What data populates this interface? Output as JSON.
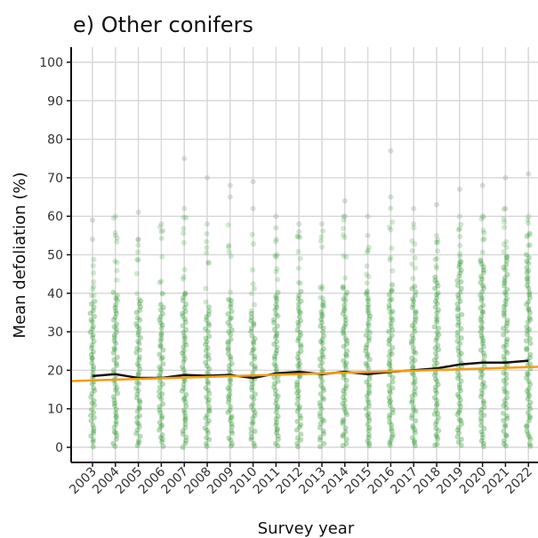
{
  "chart_data": {
    "type": "scatter",
    "title": "e) Other conifers",
    "xlabel": "Survey year",
    "ylabel": "Mean defoliation (%)",
    "x": [
      2003,
      2004,
      2005,
      2006,
      2007,
      2008,
      2009,
      2010,
      2011,
      2012,
      2013,
      2014,
      2015,
      2016,
      2017,
      2018,
      2019,
      2020,
      2021,
      2022
    ],
    "x_tick_labels": [
      "2003",
      "2004",
      "2005",
      "2006",
      "2007",
      "2008",
      "2009",
      "2010",
      "2011",
      "2012",
      "2013",
      "2014",
      "2015",
      "2016",
      "2017",
      "2018",
      "2019",
      "2020",
      "2021",
      "2022"
    ],
    "ylim": [
      0,
      100
    ],
    "y_ticks": [
      0,
      10,
      20,
      30,
      40,
      50,
      60,
      70,
      80,
      90,
      100
    ],
    "y_tick_labels": [
      "0",
      "10",
      "20",
      "30",
      "40",
      "50",
      "60",
      "70",
      "80",
      "90",
      "100"
    ],
    "grid": true,
    "series": [
      {
        "kind": "points",
        "color": "#2e9a2e",
        "dense_range": [
          [
            0,
            38
          ],
          [
            0,
            40
          ],
          [
            0,
            38
          ],
          [
            0,
            37
          ],
          [
            0,
            40
          ],
          [
            0,
            36
          ],
          [
            0,
            38
          ],
          [
            0,
            35
          ],
          [
            0,
            40
          ],
          [
            0,
            40
          ],
          [
            0,
            38
          ],
          [
            0,
            42
          ],
          [
            0,
            40
          ],
          [
            0,
            42
          ],
          [
            0,
            42
          ],
          [
            0,
            44
          ],
          [
            0,
            48
          ],
          [
            0,
            48
          ],
          [
            0,
            50
          ],
          [
            0,
            50
          ]
        ],
        "outliers": [
          [
            54,
            59
          ],
          [
            60,
            55
          ],
          [
            54,
            61
          ],
          [
            58,
            56
          ],
          [
            62,
            75
          ],
          [
            58,
            70
          ],
          [
            65,
            68
          ],
          [
            62,
            69
          ],
          [
            57,
            60
          ],
          [
            56,
            58
          ],
          [
            58,
            52
          ],
          [
            60,
            64
          ],
          [
            55,
            60
          ],
          [
            65,
            77
          ],
          [
            58,
            62
          ],
          [
            55,
            63
          ],
          [
            60,
            67
          ],
          [
            60,
            68
          ],
          [
            62,
            70
          ],
          [
            60,
            71
          ]
        ]
      },
      {
        "kind": "line",
        "color": "#111111",
        "values": [
          18.5,
          19.0,
          18.0,
          18.0,
          18.8,
          18.6,
          18.8,
          18.0,
          19.2,
          19.6,
          19.0,
          19.6,
          19.0,
          19.6,
          20.0,
          20.5,
          21.5,
          22.0,
          22.0,
          22.5
        ]
      },
      {
        "kind": "trend",
        "color": "#f39c12",
        "start": [
          2002,
          17.2
        ],
        "end": [
          2023,
          21.0
        ]
      }
    ]
  }
}
